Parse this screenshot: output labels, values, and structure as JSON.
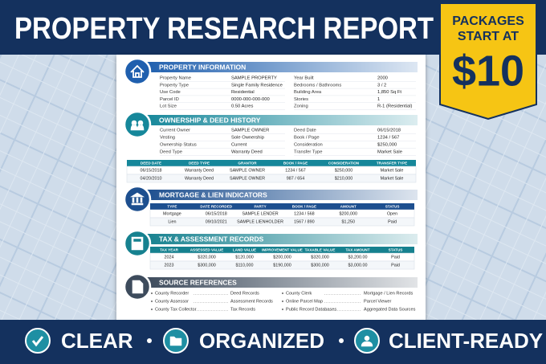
{
  "header": {
    "title": "PROPERTY RESEARCH REPORT"
  },
  "badge": {
    "line1": "PACKAGES",
    "line2": "START AT",
    "price": "$10"
  },
  "sections": [
    {
      "title": "PROPERTY INFORMATION",
      "left": [
        {
          "label": "Property Name",
          "value": "SAMPLE PROPERTY"
        },
        {
          "label": "Property Type",
          "value": "Single Family Residence"
        },
        {
          "label": "Use Code",
          "value": "Residential"
        },
        {
          "label": "Parcel ID",
          "value": "0000-000-000-000"
        },
        {
          "label": "Lot Size",
          "value": "0.50 Acres"
        }
      ],
      "right": [
        {
          "label": "Year Built",
          "value": "2000"
        },
        {
          "label": "Bedrooms / Bathrooms",
          "value": "3 / 2"
        },
        {
          "label": "Building Area",
          "value": "1,850 Sq Ft"
        },
        {
          "label": "Stories",
          "value": "1"
        },
        {
          "label": "Zoning",
          "value": "R-1 (Residential)"
        }
      ]
    },
    {
      "title": "OWNERSHIP & DEED HISTORY",
      "left": [
        {
          "label": "Current Owner",
          "value": "SAMPLE OWNER"
        },
        {
          "label": "Vesting",
          "value": "Sole Ownership"
        },
        {
          "label": "Ownership Status",
          "value": "Current"
        },
        {
          "label": "Deed Type",
          "value": "Warranty Deed"
        }
      ],
      "right": [
        {
          "label": "Deed Date",
          "value": "06/15/2018"
        },
        {
          "label": "Book / Page",
          "value": "1234 / 567"
        },
        {
          "label": "Consideration",
          "value": "$250,000"
        },
        {
          "label": "Transfer Type",
          "value": "Market Sale"
        }
      ],
      "table": {
        "columns": [
          "DEED DATE",
          "DEED TYPE",
          "GRANTOR",
          "BOOK / PAGE",
          "CONSIDERATION",
          "TRANSFER TYPE"
        ],
        "rows": [
          [
            "06/15/2018",
            "Warranty Deed",
            "SAMPLE OWNER",
            "1234 / 567",
            "$250,000",
            "Market Sale"
          ],
          [
            "04/20/2010",
            "Warranty Deed",
            "SAMPLE OWNER",
            "987 / 654",
            "$210,000",
            "Market Sale"
          ]
        ]
      }
    },
    {
      "title": "MORTGAGE & LIEN INDICATORS",
      "table": {
        "columns": [
          "TYPE",
          "DATE RECORDED",
          "PARTY",
          "BOOK / PAGE",
          "AMOUNT",
          "STATUS"
        ],
        "rows": [
          [
            "Mortgage",
            "06/15/2018",
            "SAMPLE LENDER",
            "1234 / 568",
            "$200,000",
            "Open"
          ],
          [
            "Lien",
            "09/10/2021",
            "SAMPLE LIENHOLDER",
            "1567 / 890",
            "$1,250",
            "Paid"
          ]
        ]
      }
    },
    {
      "title": "TAX & ASSESSMENT RECORDS",
      "table": {
        "columns": [
          "TAX YEAR",
          "ASSESSED VALUE",
          "LAND VALUE",
          "IMPROVEMENT VALUE",
          "TAXABLE VALUE",
          "TAX AMOUNT",
          "STATUS"
        ],
        "rows": [
          [
            "2024",
            "$320,000",
            "$120,000",
            "$200,000",
            "$320,000",
            "$3,200.00",
            "Paid"
          ],
          [
            "2023",
            "$300,000",
            "$110,000",
            "$190,000",
            "$300,000",
            "$3,000.00",
            "Paid"
          ]
        ]
      }
    },
    {
      "title": "SOURCE REFERENCES",
      "left": [
        {
          "label": "County Recorder",
          "value": "Deed Records"
        },
        {
          "label": "County Assessor",
          "value": "Assessment Records"
        },
        {
          "label": "County Tax Collector",
          "value": "Tax Records"
        }
      ],
      "right": [
        {
          "label": "County Clerk",
          "value": "Mortgage / Lien Records"
        },
        {
          "label": "Online Parcel Map",
          "value": "Parcel Viewer"
        },
        {
          "label": "Public Record Databases",
          "value": "Aggregated Data Sources"
        }
      ]
    }
  ],
  "footer": {
    "items": [
      "CLEAR",
      "ORGANIZED",
      "CLIENT-READY"
    ]
  }
}
